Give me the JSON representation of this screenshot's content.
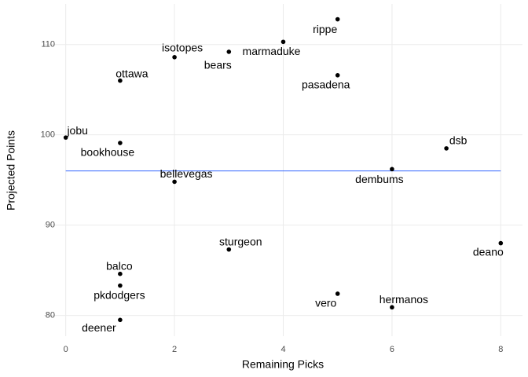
{
  "chart_data": {
    "type": "scatter",
    "x_label": "Remaining Picks",
    "y_label": "Projected Points",
    "labels": [
      "rippe",
      "marmaduke",
      "isotopes",
      "bears",
      "ottawa",
      "pasadena",
      "jobu",
      "bookhouse",
      "dsb",
      "dembums",
      "bellevegas",
      "sturgeon",
      "deano",
      "balco",
      "pkdodgers",
      "vero",
      "hermanos",
      "deener"
    ],
    "x": [
      5,
      4,
      2,
      3,
      1,
      5,
      0,
      1,
      7,
      6,
      2,
      3,
      8,
      1,
      1,
      5,
      6,
      1
    ],
    "values": [
      112.8,
      110.3,
      108.6,
      109.2,
      106.0,
      106.6,
      99.7,
      99.1,
      98.5,
      96.2,
      94.8,
      87.3,
      88.0,
      84.6,
      83.3,
      82.4,
      80.9,
      79.5
    ],
    "color": "#000000",
    "reference_line": 96.0,
    "reference_color": "#3366ff",
    "xlim": [
      -0.4,
      8.4
    ],
    "xticks": [
      0,
      2,
      4,
      6,
      8
    ],
    "ylim": [
      77.7,
      114.5
    ],
    "yticks": [
      80,
      90,
      100,
      110
    ],
    "grid": true
  }
}
